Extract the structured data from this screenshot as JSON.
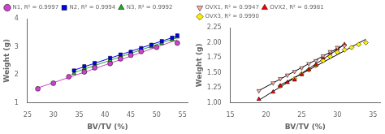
{
  "chart_data": [
    {
      "type": "scatter",
      "xlabel": "BV/TV (%)",
      "ylabel": "Weight (g)",
      "xlim": [
        25,
        56
      ],
      "ylim": [
        1,
        4
      ],
      "xticks": [
        25,
        30,
        35,
        40,
        45,
        50,
        55
      ],
      "yticks": [
        1,
        2,
        3,
        4
      ],
      "grid": false,
      "legend": "upper left",
      "series": [
        {
          "name": "N1, R² = 0.9997",
          "color": "#CC44CC",
          "marker": "circle",
          "x": [
            27,
            30,
            33,
            36,
            38,
            41,
            43,
            45,
            47,
            50,
            54
          ],
          "values": [
            1.5,
            1.7,
            1.93,
            2.1,
            2.25,
            2.4,
            2.57,
            2.7,
            2.83,
            2.98,
            3.13
          ]
        },
        {
          "type": "line",
          "color": "#CC44CC",
          "x": [
            27,
            36,
            45,
            54
          ],
          "values": [
            1.531,
            2.092,
            2.664,
            3.247
          ]
        },
        {
          "name": "N2, R² = 0.9994",
          "color": "#0000EE",
          "marker": "square",
          "x": [
            34,
            36,
            38,
            41,
            43,
            45,
            47,
            49,
            51,
            53,
            54
          ],
          "values": [
            2.15,
            2.3,
            2.42,
            2.6,
            2.72,
            2.82,
            2.95,
            3.07,
            3.2,
            3.32,
            3.4
          ]
        },
        {
          "type": "line",
          "color": "#0000EE",
          "x": [
            34,
            44,
            54
          ],
          "values": [
            2.164,
            2.776,
            3.382
          ]
        },
        {
          "name": "N3, R² = 0.9992",
          "color": "#22AA22",
          "marker": "triangle",
          "x": [
            34,
            36,
            38,
            41,
            43,
            45,
            47,
            49,
            51,
            53,
            54
          ],
          "values": [
            2.05,
            2.22,
            2.34,
            2.52,
            2.65,
            2.77,
            2.88,
            3.0,
            3.12,
            3.25,
            3.35
          ]
        },
        {
          "type": "line",
          "color": "#22AA22",
          "x": [
            34,
            44,
            54
          ],
          "values": [
            2.078,
            2.701,
            3.326
          ]
        }
      ]
    },
    {
      "type": "scatter",
      "xlabel": "BV/TV (%)",
      "ylabel": "Weight (g)",
      "xlim": [
        15,
        36
      ],
      "ylim": [
        1.0,
        2.25
      ],
      "xticks": [
        15,
        20,
        25,
        30,
        35
      ],
      "yticks": [
        {
          "value": 1.0,
          "label": "1.00"
        },
        {
          "value": 1.25,
          "label": "1.25"
        },
        {
          "value": 1.5,
          "label": "1.50"
        },
        {
          "value": 1.75,
          "label": "1.75"
        },
        {
          "value": 2.0,
          "label": "2.00"
        },
        2.25
      ],
      "grid": false,
      "legend": "upper left",
      "series": [
        {
          "name": "OVX1, R² = 0.9947",
          "color": "#FFAAAA",
          "marker": "triangle-down",
          "x": [
            19,
            21,
            22,
            23,
            24,
            25,
            26,
            27,
            28,
            29,
            30,
            31
          ],
          "values": [
            1.2,
            1.33,
            1.4,
            1.46,
            1.52,
            1.58,
            1.65,
            1.7,
            1.78,
            1.85,
            1.92,
            1.95
          ]
        },
        {
          "type": "line",
          "color": "#000000",
          "x": [
            19,
            25,
            31
          ],
          "values": [
            1.203,
            1.586,
            1.968
          ]
        },
        {
          "name": "OVX2, R² = 0.9981",
          "color": "#EE0000",
          "marker": "triangle",
          "x": [
            19,
            21,
            22,
            23,
            24,
            25,
            26,
            27,
            28,
            29,
            30,
            31
          ],
          "values": [
            1.06,
            1.18,
            1.28,
            1.34,
            1.38,
            1.47,
            1.55,
            1.63,
            1.75,
            1.83,
            1.9,
            1.97
          ]
        },
        {
          "type": "line",
          "color": "#000000",
          "x": [
            19,
            22,
            25,
            28,
            31
          ],
          "values": [
            1.044,
            1.263,
            1.49,
            1.726,
            1.969
          ]
        },
        {
          "name": "OVX3, R² = 0.9990",
          "color": "#FFEE00",
          "marker": "diamond",
          "x": [
            22,
            24,
            25,
            26,
            27,
            28,
            29,
            30,
            31,
            32,
            33,
            34
          ],
          "values": [
            1.28,
            1.4,
            1.48,
            1.55,
            1.62,
            1.7,
            1.77,
            1.84,
            1.88,
            1.92,
            1.97,
            2.0
          ]
        },
        {
          "type": "line",
          "color": "#000000",
          "x": [
            22,
            28,
            34
          ],
          "values": [
            1.295,
            1.673,
            2.057
          ]
        }
      ]
    }
  ]
}
